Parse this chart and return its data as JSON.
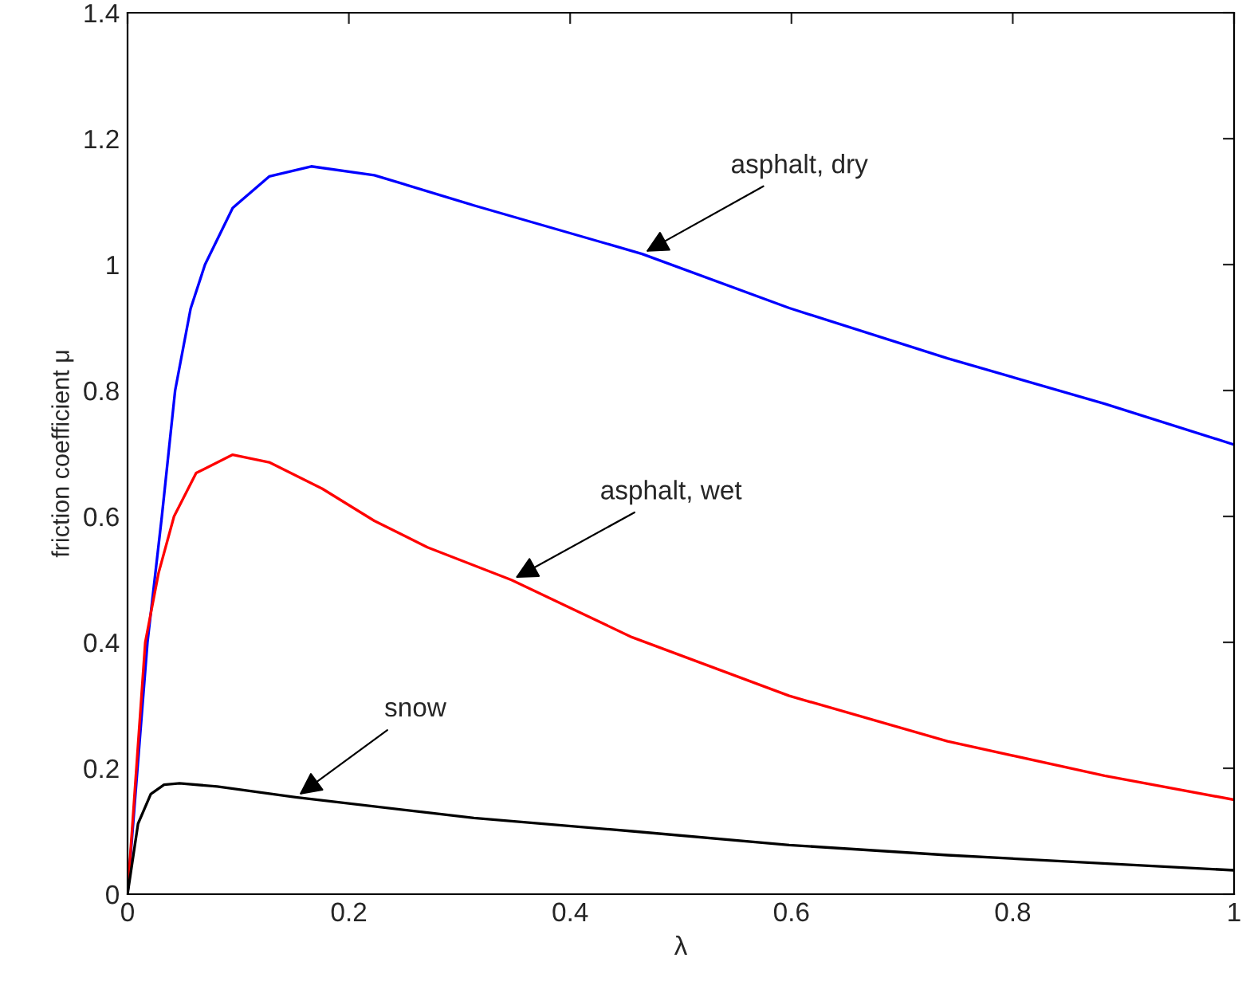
{
  "chart_data": {
    "type": "line",
    "xlabel": "λ",
    "ylabel": "friction coefficient μ",
    "xlim": [
      0,
      1
    ],
    "ylim": [
      0,
      1.4
    ],
    "xticks": [
      0,
      0.2,
      0.4,
      0.6,
      0.8,
      1
    ],
    "yticks": [
      0,
      0.2,
      0.4,
      0.6,
      0.8,
      1,
      1.2,
      1.4
    ],
    "grid": false,
    "legend": false,
    "marker": "none",
    "line_style": "solid",
    "series": [
      {
        "color": "#0000ff",
        "x": [
          0,
          0.018,
          0.031,
          0.043,
          0.057,
          0.07,
          0.095,
          0.128,
          0.166,
          0.223,
          0.313,
          0.465,
          0.598,
          0.741,
          0.883,
          1.0
        ],
        "values": [
          0,
          0.4,
          0.6,
          0.8,
          0.93,
          1.0,
          1.09,
          1.14,
          1.156,
          1.142,
          1.094,
          1.017,
          0.931,
          0.851,
          0.779,
          0.714
        ]
      },
      {
        "color": "#ff0000",
        "x": [
          0,
          0.016,
          0.028,
          0.042,
          0.062,
          0.095,
          0.128,
          0.176,
          0.223,
          0.271,
          0.347,
          0.456,
          0.598,
          0.741,
          0.883,
          1.0
        ],
        "values": [
          0,
          0.4,
          0.51,
          0.6,
          0.669,
          0.698,
          0.686,
          0.644,
          0.593,
          0.551,
          0.499,
          0.408,
          0.315,
          0.243,
          0.188,
          0.15
        ]
      },
      {
        "color": "#000000",
        "x": [
          0,
          0.0095,
          0.021,
          0.033,
          0.047,
          0.081,
          0.152,
          0.313,
          0.456,
          0.598,
          0.741,
          1.0
        ],
        "values": [
          0,
          0.112,
          0.159,
          0.174,
          0.176,
          0.171,
          0.154,
          0.121,
          0.1,
          0.078,
          0.062,
          0.038
        ]
      }
    ],
    "annotations": [
      {
        "text": "asphalt, dry",
        "x": 0.465,
        "y": 1.017
      },
      {
        "text": "asphalt, wet",
        "x": 0.347,
        "y": 0.499
      },
      {
        "text": "snow",
        "x": 0.152,
        "y": 0.154
      }
    ]
  }
}
